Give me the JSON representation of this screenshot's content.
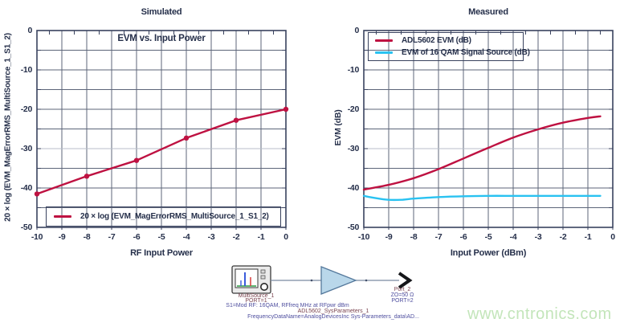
{
  "watermark": {
    "text": "www.cntronics.com"
  },
  "chart_data": [
    {
      "type": "line",
      "title": "Simulated",
      "inner_title": "EVM vs. Input Power",
      "xlabel": "RF Input Power",
      "ylabel": "20 × log (EVM_MagErrorRMS_MultiSource_1_S1_2)",
      "xlim": [
        -10,
        0
      ],
      "ylim": [
        -50,
        0
      ],
      "xticks": [
        -10,
        -9,
        -8,
        -7,
        -6,
        -5,
        -4,
        -3,
        -2,
        -1,
        0
      ],
      "yticks": [
        0,
        -10,
        -20,
        -30,
        -40,
        -50
      ],
      "grid": {
        "x_step": 1,
        "y_step": 5,
        "light_y_line": -30,
        "on": true
      },
      "legend": {
        "position": "bottom-inside",
        "entries": [
          {
            "label": "20 × log (EVM_MagErrorRMS_MultiSource_1_S1_2)",
            "color": "#be1141"
          }
        ]
      },
      "series": [
        {
          "name": "20 × log (EVM_MagErrorRMS_MultiSource_1_S1_2)",
          "color": "#be1141",
          "marker": "circle",
          "smooth": false,
          "x": [
            -10,
            -8,
            -6,
            -4,
            -2,
            0
          ],
          "y": [
            -41.5,
            -37.0,
            -33.0,
            -27.3,
            -22.8,
            -20.0
          ]
        }
      ]
    },
    {
      "type": "line",
      "title": "Measured",
      "inner_title": "",
      "xlabel": "Input Power (dBm)",
      "ylabel": "EVM (dB)",
      "xlim": [
        -10,
        0
      ],
      "ylim": [
        -50,
        0
      ],
      "xticks": [
        -10,
        -9,
        -8,
        -7,
        -6,
        -5,
        -4,
        -3,
        -2,
        -1,
        0
      ],
      "yticks": [
        0,
        -10,
        -20,
        -30,
        -40,
        -50
      ],
      "grid": {
        "x_step": 1,
        "y_step": 5,
        "light_y_line": -30,
        "on": true
      },
      "legend": {
        "position": "top-inside",
        "entries": [
          {
            "label": "ADL5602 EVM (dB)",
            "color": "#be1141"
          },
          {
            "label": "EVM of 16 QAM Signal Source (dB)",
            "color": "#29c2f1"
          }
        ]
      },
      "series": [
        {
          "name": "ADL5602 EVM (dB)",
          "color": "#be1141",
          "marker": "none",
          "smooth": true,
          "x": [
            -10,
            -9,
            -8,
            -7,
            -6,
            -5,
            -4,
            -3,
            -2,
            -1,
            -0.5
          ],
          "y": [
            -40.4,
            -39.2,
            -37.5,
            -35.2,
            -32.5,
            -29.8,
            -27.2,
            -25.1,
            -23.4,
            -22.2,
            -21.8
          ]
        },
        {
          "name": "EVM of 16 QAM Signal Source (dB)",
          "color": "#29c2f1",
          "marker": "none",
          "smooth": true,
          "x": [
            -10,
            -9.5,
            -9,
            -8.5,
            -8,
            -7,
            -6,
            -5,
            -4,
            -3,
            -2,
            -1,
            -0.5
          ],
          "y": [
            -42.0,
            -42.6,
            -43.0,
            -43.0,
            -42.7,
            -42.3,
            -42.1,
            -42.0,
            -42.0,
            -42.0,
            -42.0,
            -42.0,
            -42.0
          ]
        }
      ]
    }
  ],
  "schematic": {
    "source_name": "MultiSource_1",
    "source_port": "PORT=1",
    "source_param": "S1=Mod RF: 16QAM, RFfreq MHz at RFpwr dBm",
    "amp_name": "ADL5602_SysParameters_1",
    "amp_param": "FrequencyDataName=AnalogDevicesInc Sys-Parameters_data\\AD...",
    "port_name": "Port_2",
    "port_z": "ZO=50 Ω",
    "port_num": "PORT=2"
  }
}
